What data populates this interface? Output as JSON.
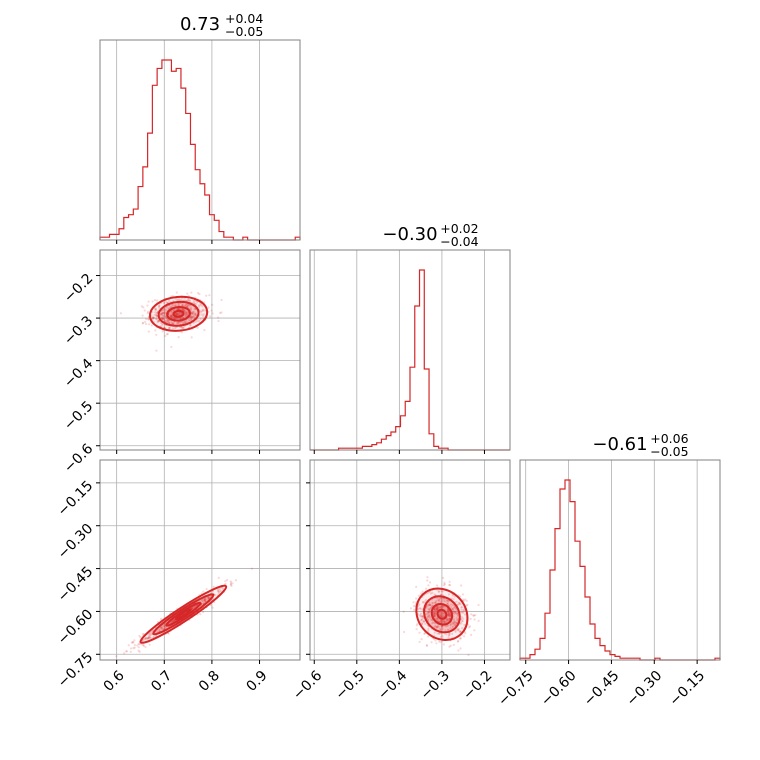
{
  "chart_data": {
    "type": "corner",
    "color": "#d62728",
    "parameters": [
      {
        "median": "0.73",
        "plus": "+0.04",
        "minus": "−0.05",
        "range": [
          0.565,
          0.985
        ],
        "ticks": [
          {
            "v": 0.6,
            "label": "0.6"
          },
          {
            "v": 0.7,
            "label": "0.7"
          },
          {
            "v": 0.8,
            "label": "0.8"
          },
          {
            "v": 0.9,
            "label": "0.9"
          }
        ]
      },
      {
        "median": "−0.30",
        "plus": "+0.02",
        "minus": "−0.04",
        "range": [
          -0.61,
          -0.14
        ],
        "ticks": [
          {
            "v": -0.6,
            "label": "−0.6"
          },
          {
            "v": -0.5,
            "label": "−0.5"
          },
          {
            "v": -0.4,
            "label": "−0.4"
          },
          {
            "v": -0.3,
            "label": "−0.3"
          },
          {
            "v": -0.2,
            "label": "−0.2"
          }
        ]
      },
      {
        "median": "−0.61",
        "plus": "+0.06",
        "minus": "−0.05",
        "range": [
          -0.77,
          -0.07
        ],
        "ticks": [
          {
            "v": -0.75,
            "label": "−0.75"
          },
          {
            "v": -0.6,
            "label": "−0.60"
          },
          {
            "v": -0.45,
            "label": "−0.45"
          },
          {
            "v": -0.3,
            "label": "−0.30"
          },
          {
            "v": -0.15,
            "label": "−0.15"
          }
        ]
      }
    ],
    "histograms": [
      {
        "edges": [
          0.565,
          0.985
        ],
        "counts": [
          1,
          1,
          2,
          2,
          4,
          8,
          9,
          11,
          19,
          26,
          38,
          55,
          61,
          64,
          64,
          60,
          61,
          54,
          45,
          34,
          25,
          20,
          16,
          9,
          7,
          3,
          1,
          1,
          0,
          0,
          1,
          0,
          0,
          0,
          0,
          0,
          0,
          0,
          0,
          0,
          0,
          1
        ]
      },
      {
        "edges": [
          -0.61,
          -0.14
        ],
        "counts": [
          0,
          0,
          0,
          0,
          0,
          0,
          1,
          1,
          1,
          1,
          1,
          2,
          2,
          3,
          4,
          6,
          8,
          10,
          13,
          19,
          27,
          46,
          80,
          100,
          45,
          9,
          2,
          1,
          1,
          0,
          0,
          0,
          0,
          0,
          0,
          0,
          0,
          0,
          0,
          0,
          0,
          0
        ]
      },
      {
        "edges": [
          -0.77,
          -0.07
        ],
        "counts": [
          1,
          1,
          3,
          6,
          12,
          26,
          50,
          73,
          95,
          100,
          88,
          66,
          52,
          35,
          20,
          12,
          8,
          5,
          3,
          2,
          1,
          1,
          1,
          1,
          0,
          0,
          0,
          1,
          0,
          0,
          0,
          0,
          0,
          0,
          0,
          0,
          0,
          0,
          0,
          1
        ]
      }
    ],
    "pairs": [
      {
        "x": 0,
        "y": 1,
        "center": [
          0.73,
          -0.29
        ],
        "sd": [
          0.03,
          0.02
        ],
        "rho": 0.1
      },
      {
        "x": 0,
        "y": 2,
        "center": [
          0.74,
          -0.61
        ],
        "sd": [
          0.045,
          0.05
        ],
        "rho": 0.96
      },
      {
        "x": 1,
        "y": 2,
        "center": [
          -0.3,
          -0.61
        ],
        "sd": [
          0.03,
          0.045
        ],
        "rho": -0.15
      }
    ],
    "grid": true
  }
}
